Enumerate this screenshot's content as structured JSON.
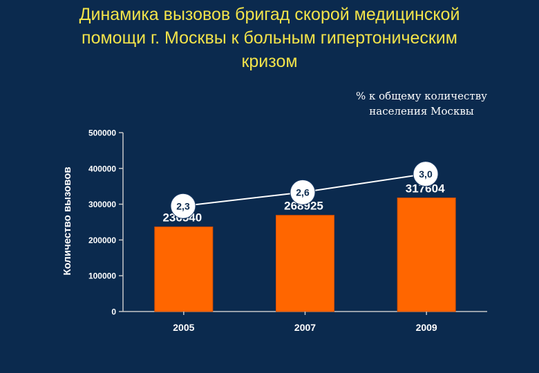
{
  "title_lines": [
    "Динамика вызовов бригад скорой медицинской",
    "помощи г. Москвы к больным гипертоническим",
    "кризом"
  ],
  "line_note_lines": [
    "% к общему количеству",
    "населения Москвы"
  ],
  "colors": {
    "background": "#0b2a4e",
    "title": "#f2e34a",
    "bar": "#ff6600",
    "text": "#ffffff",
    "axis": "#c8c8c8"
  },
  "chart_data": {
    "type": "bar",
    "categories": [
      "2005",
      "2007",
      "2009"
    ],
    "series": [
      {
        "values": [
          236540,
          268925,
          317604
        ]
      }
    ],
    "data_labels": [
      "236540",
      "268925",
      "317604"
    ],
    "ylabel": "Количество вызовов",
    "ylim": [
      0,
      500000
    ],
    "yticks": [
      0,
      100000,
      200000,
      300000,
      400000,
      500000
    ],
    "ytick_labels": [
      "0",
      "100000",
      "200000",
      "300000",
      "400000",
      "500000"
    ],
    "grid": false,
    "overlay_line": {
      "type": "line",
      "values": [
        2.3,
        2.6,
        3.0
      ],
      "labels": [
        "2,3",
        "2,6",
        "3,0"
      ],
      "ylim": [
        0.0,
        3.9
      ]
    }
  }
}
